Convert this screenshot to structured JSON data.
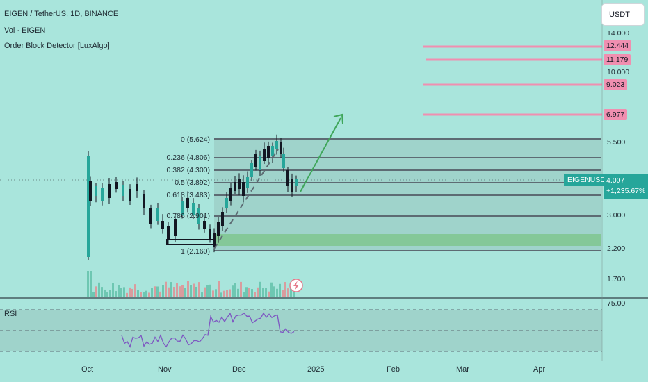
{
  "header": {
    "title": "EIGEN / TetherUS, 1D, BINANCE",
    "volume_label": "Vol · EIGEN",
    "indicator_label": "Order Block Detector [LuxAlgo]"
  },
  "currency_button": "USDT",
  "price_axis": {
    "ticks": [
      "14.000",
      "10.000",
      "5.500",
      "3.000",
      "2.200",
      "1.700"
    ],
    "rsi_tick": "75.00"
  },
  "target_tags": [
    "12.444",
    "11.179",
    "9.023",
    "6.977"
  ],
  "symbol_badge": "EIGENUSDT",
  "last_price": "4.007",
  "price_change": "+1,235.67%",
  "fib_levels": [
    {
      "label": "0 (5.624)",
      "ratio": 0
    },
    {
      "label": "0.236 (4.806)",
      "ratio": 0.236
    },
    {
      "label": "0.382 (4.300)",
      "ratio": 0.382
    },
    {
      "label": "0.5 (3.892)",
      "ratio": 0.5
    },
    {
      "label": "0.618 (3.483)",
      "ratio": 0.618
    },
    {
      "label": "0.786 (2.901)",
      "ratio": 0.786
    },
    {
      "label": "1 (2.160)",
      "ratio": 1
    }
  ],
  "rsi_label": "RSI",
  "months": [
    "Oct",
    "Nov",
    "Dec",
    "2025",
    "Feb",
    "Mar",
    "Apr"
  ],
  "colors": {
    "background": "#a9e5dc",
    "up": "#26a69a",
    "down": "#131722",
    "fib_line": "#5d6b73",
    "target_line": "#f08fb0",
    "order_block": "#7fc58f",
    "rsi": "#7e57c2",
    "arrow": "#3fa65a"
  },
  "icons": [
    "lightning-icon"
  ]
}
